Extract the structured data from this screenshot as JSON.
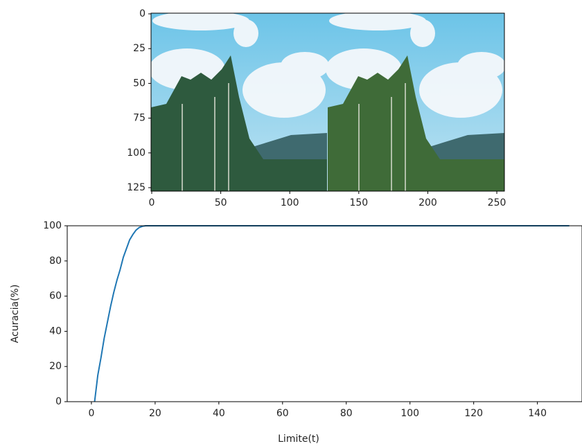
{
  "chart_data": [
    {
      "type": "image",
      "xlim": [
        -0.5,
        255.5
      ],
      "ylim": [
        127.5,
        -0.5
      ],
      "xticks": [
        0,
        50,
        100,
        150,
        200,
        250
      ],
      "yticks": [
        0,
        25,
        50,
        75,
        100,
        125
      ]
    },
    {
      "type": "line",
      "xlabel": "Limite(t)",
      "ylabel": "Acuracia(%)",
      "x": [
        1,
        2,
        3,
        4,
        5,
        6,
        7,
        8,
        9,
        10,
        11,
        12,
        13,
        14,
        15,
        16,
        17,
        20,
        40,
        60,
        80,
        100,
        120,
        140,
        150
      ],
      "series": [
        {
          "color": "#1f77b4",
          "values": [
            0,
            15,
            25,
            36,
            45,
            54,
            62,
            69,
            75,
            82,
            87,
            92,
            95,
            97.5,
            99,
            99.7,
            100,
            100,
            100,
            100,
            100,
            100,
            100,
            100,
            100
          ]
        }
      ],
      "xlim": [
        -7.6,
        154
      ],
      "ylim": [
        0,
        100
      ],
      "xticks": [
        0,
        20,
        40,
        60,
        80,
        100,
        120,
        140
      ],
      "yticks": [
        0,
        20,
        40,
        60,
        80,
        100
      ]
    }
  ]
}
